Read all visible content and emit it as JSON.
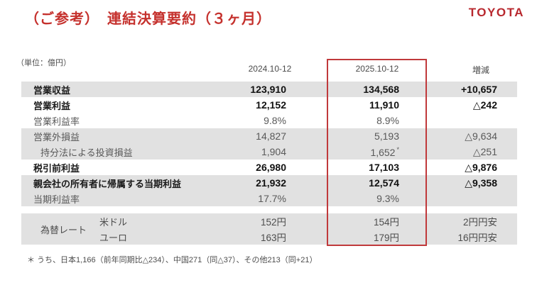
{
  "header": {
    "title": "（ご参考）　連結決算要約（３ヶ月）",
    "logo": "TOYOTA"
  },
  "table": {
    "unit_label": "（単位：億円）",
    "columns": [
      "2024.10-12",
      "2025.10-12",
      "増減"
    ],
    "rows": [
      {
        "label": "営業収益",
        "c2024": "123,910",
        "c2025": "134,568",
        "change": "+10,657"
      },
      {
        "label": "営業利益",
        "c2024": "12,152",
        "c2025": "11,910",
        "change": "△242"
      },
      {
        "label": "営業利益率",
        "c2024": "9.8%",
        "c2025": "8.9%",
        "change": ""
      },
      {
        "label": "営業外損益",
        "c2024": "14,827",
        "c2025": "5,193",
        "change": "△9,634"
      },
      {
        "label": "持分法による投資損益",
        "c2024": "1,904",
        "c2025": "1,652",
        "c2025_note": "*",
        "change": "△251"
      },
      {
        "label": "税引前利益",
        "c2024": "26,980",
        "c2025": "17,103",
        "change": "△9,876"
      },
      {
        "label": "親会社の所有者に帰属する当期利益",
        "c2024": "21,932",
        "c2025": "12,574",
        "change": "△9,358"
      },
      {
        "label": "当期利益率",
        "c2024": "17.7%",
        "c2025": "9.3%",
        "change": ""
      }
    ],
    "fx": {
      "label": "為替レート",
      "rows": [
        {
          "currency": "米ドル",
          "c2024": "152円",
          "c2025": "154円",
          "change": "2円円安"
        },
        {
          "currency": "ユーロ",
          "c2024": "163円",
          "c2025": "179円",
          "change": "16円円安"
        }
      ]
    }
  },
  "footnote": "＊ うち、日本1,166（前年同期比△234）、中国271（同△37）、その他213（同+21）",
  "colors": {
    "accent_red": "#c5312d",
    "highlight_border_red": "#c0393b",
    "band_gray": "#e1e1e1",
    "text_dark": "#1a1a1a",
    "text_gray": "#595959"
  }
}
